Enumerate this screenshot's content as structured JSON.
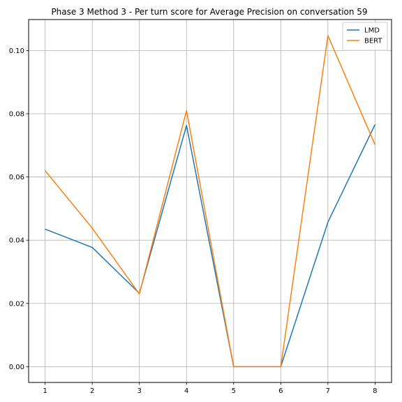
{
  "chart_data": {
    "type": "line",
    "title": "Phase 3 Method 3 - Per turn score for Average Precision on conversation 59",
    "xlabel": "",
    "ylabel": "",
    "x": [
      1,
      2,
      3,
      4,
      5,
      6,
      7,
      8
    ],
    "xlim": [
      0.65,
      8.35
    ],
    "ylim": [
      -0.005,
      0.1098
    ],
    "yticks": [
      0.0,
      0.02,
      0.04,
      0.06,
      0.08,
      0.1
    ],
    "ytick_labels": [
      "0.00",
      "0.02",
      "0.04",
      "0.06",
      "0.08",
      "0.10"
    ],
    "xtick_labels": [
      "1",
      "2",
      "3",
      "4",
      "5",
      "6",
      "7",
      "8"
    ],
    "grid": true,
    "legend_position": "top-right",
    "series": [
      {
        "name": "LMD",
        "color": "#1f77b4",
        "values": [
          0.0435,
          0.0377,
          0.0232,
          0.0763,
          0.0,
          0.0,
          0.0457,
          0.0766
        ]
      },
      {
        "name": "BERT",
        "color": "#ff7f0e",
        "values": [
          0.062,
          0.0438,
          0.023,
          0.081,
          0.0,
          0.0,
          0.1047,
          0.0702
        ]
      }
    ]
  }
}
